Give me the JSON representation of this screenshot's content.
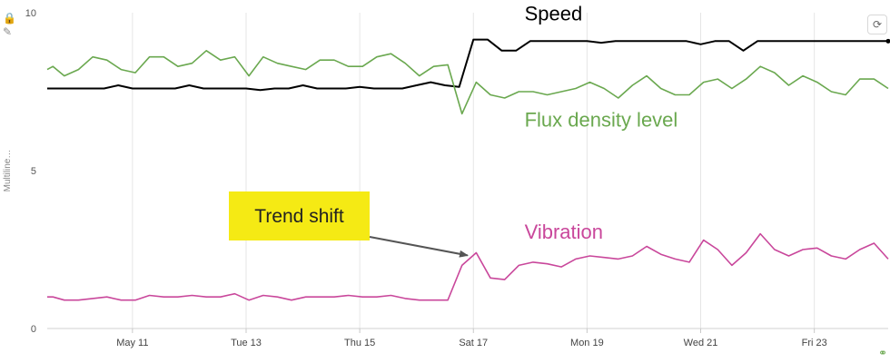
{
  "chart_data": {
    "type": "line",
    "ylabel": "Multiline…",
    "ylim": [
      0,
      10
    ],
    "y_ticks": [
      "0",
      "5",
      "10"
    ],
    "x_tick_labels": [
      "May 11",
      "Tue 13",
      "Thu 15",
      "Sat 17",
      "Mon 19",
      "Wed 21",
      "Fri 23"
    ],
    "x_tick_positions": [
      1.5,
      3.5,
      5.5,
      7.5,
      9.5,
      11.5,
      13.5
    ],
    "xlim": [
      0,
      14.8
    ],
    "grid": "vertical",
    "series": [
      {
        "name": "Speed",
        "color": "#000000",
        "x": [
          0,
          0.25,
          0.5,
          0.75,
          1,
          1.25,
          1.5,
          1.75,
          2,
          2.25,
          2.5,
          2.75,
          3,
          3.25,
          3.5,
          3.75,
          4,
          4.25,
          4.5,
          4.75,
          5,
          5.25,
          5.5,
          5.75,
          6,
          6.25,
          6.5,
          6.75,
          7,
          7.25,
          7.5,
          7.75,
          8,
          8.25,
          8.5,
          8.75,
          9,
          9.25,
          9.5,
          9.75,
          10,
          10.25,
          10.5,
          10.75,
          11,
          11.25,
          11.5,
          11.75,
          12,
          12.25,
          12.5,
          12.75,
          13,
          13.25,
          13.5,
          13.75,
          14,
          14.25,
          14.5,
          14.8
        ],
        "values": [
          7.6,
          7.6,
          7.6,
          7.6,
          7.6,
          7.7,
          7.6,
          7.6,
          7.6,
          7.6,
          7.7,
          7.6,
          7.6,
          7.6,
          7.6,
          7.55,
          7.6,
          7.6,
          7.7,
          7.6,
          7.6,
          7.6,
          7.65,
          7.6,
          7.6,
          7.6,
          7.7,
          7.8,
          7.7,
          7.65,
          9.15,
          9.15,
          8.8,
          8.8,
          9.1,
          9.1,
          9.1,
          9.1,
          9.1,
          9.05,
          9.1,
          9.1,
          9.1,
          9.1,
          9.1,
          9.1,
          9.0,
          9.1,
          9.1,
          8.8,
          9.1,
          9.1,
          9.1,
          9.1,
          9.1,
          9.1,
          9.1,
          9.1,
          9.1,
          9.1
        ]
      },
      {
        "name": "Flux density level",
        "color": "#6aa84f",
        "x": [
          0,
          0.1,
          0.3,
          0.55,
          0.8,
          1.05,
          1.3,
          1.55,
          1.8,
          2.05,
          2.3,
          2.55,
          2.8,
          3.05,
          3.3,
          3.55,
          3.8,
          4.05,
          4.3,
          4.55,
          4.8,
          5.05,
          5.3,
          5.55,
          5.8,
          6.05,
          6.3,
          6.55,
          6.8,
          7.05,
          7.3,
          7.55,
          7.8,
          8.05,
          8.3,
          8.55,
          8.8,
          9.05,
          9.3,
          9.55,
          9.8,
          10.05,
          10.3,
          10.55,
          10.8,
          11.05,
          11.3,
          11.55,
          11.8,
          12.05,
          12.3,
          12.55,
          12.8,
          13.05,
          13.3,
          13.55,
          13.8,
          14.05,
          14.3,
          14.55,
          14.8
        ],
        "values": [
          8.2,
          8.3,
          8.0,
          8.2,
          8.6,
          8.5,
          8.2,
          8.1,
          8.6,
          8.6,
          8.3,
          8.4,
          8.8,
          8.5,
          8.6,
          8.0,
          8.6,
          8.4,
          8.3,
          8.2,
          8.5,
          8.5,
          8.3,
          8.3,
          8.6,
          8.7,
          8.4,
          8.0,
          8.3,
          8.35,
          6.8,
          7.8,
          7.4,
          7.3,
          7.5,
          7.5,
          7.4,
          7.5,
          7.6,
          7.8,
          7.6,
          7.3,
          7.7,
          8.0,
          7.6,
          7.4,
          7.4,
          7.8,
          7.9,
          7.6,
          7.9,
          8.3,
          8.1,
          7.7,
          8.0,
          7.8,
          7.5,
          7.4,
          7.9,
          7.9,
          7.6
        ]
      },
      {
        "name": "Vibration",
        "color": "#c9479b",
        "x": [
          0,
          0.1,
          0.3,
          0.55,
          0.8,
          1.05,
          1.3,
          1.55,
          1.8,
          2.05,
          2.3,
          2.55,
          2.8,
          3.05,
          3.3,
          3.55,
          3.8,
          4.05,
          4.3,
          4.55,
          4.8,
          5.05,
          5.3,
          5.55,
          5.8,
          6.05,
          6.3,
          6.55,
          6.8,
          7.05,
          7.3,
          7.55,
          7.8,
          8.05,
          8.3,
          8.55,
          8.8,
          9.05,
          9.3,
          9.55,
          9.8,
          10.05,
          10.3,
          10.55,
          10.8,
          11.05,
          11.3,
          11.55,
          11.8,
          12.05,
          12.3,
          12.55,
          12.8,
          13.05,
          13.3,
          13.55,
          13.8,
          14.05,
          14.3,
          14.55,
          14.8
        ],
        "values": [
          1.0,
          1.0,
          0.9,
          0.9,
          0.95,
          1.0,
          0.9,
          0.9,
          1.05,
          1.0,
          1.0,
          1.05,
          1.0,
          1.0,
          1.1,
          0.9,
          1.05,
          1.0,
          0.9,
          1.0,
          1.0,
          1.0,
          1.05,
          1.0,
          1.0,
          1.05,
          0.95,
          0.9,
          0.9,
          0.9,
          2.0,
          2.4,
          1.6,
          1.55,
          2.0,
          2.1,
          2.05,
          1.95,
          2.2,
          2.3,
          2.25,
          2.2,
          2.3,
          2.6,
          2.35,
          2.2,
          2.1,
          2.8,
          2.5,
          2.0,
          2.4,
          3.0,
          2.5,
          2.3,
          2.5,
          2.55,
          2.3,
          2.2,
          2.5,
          2.7,
          2.2
        ]
      }
    ],
    "series_labels": [
      {
        "text": "Speed",
        "x": 8.4,
        "y": 9.75,
        "color": "#000000"
      },
      {
        "text": "Flux density level",
        "x": 8.4,
        "y": 6.4,
        "color": "#6aa84f"
      },
      {
        "text": "Vibration",
        "x": 8.4,
        "y": 2.85,
        "color": "#c9479b"
      }
    ],
    "annotations": [
      {
        "text": "Trend shift",
        "box_color": "#f5ea14",
        "arrow_to_x": 7.4,
        "arrow_to_y": 2.2
      }
    ]
  },
  "icons": {
    "top_left_1": "🔒",
    "top_left_2": "✎",
    "reset": "⟳",
    "link": "⚭"
  }
}
